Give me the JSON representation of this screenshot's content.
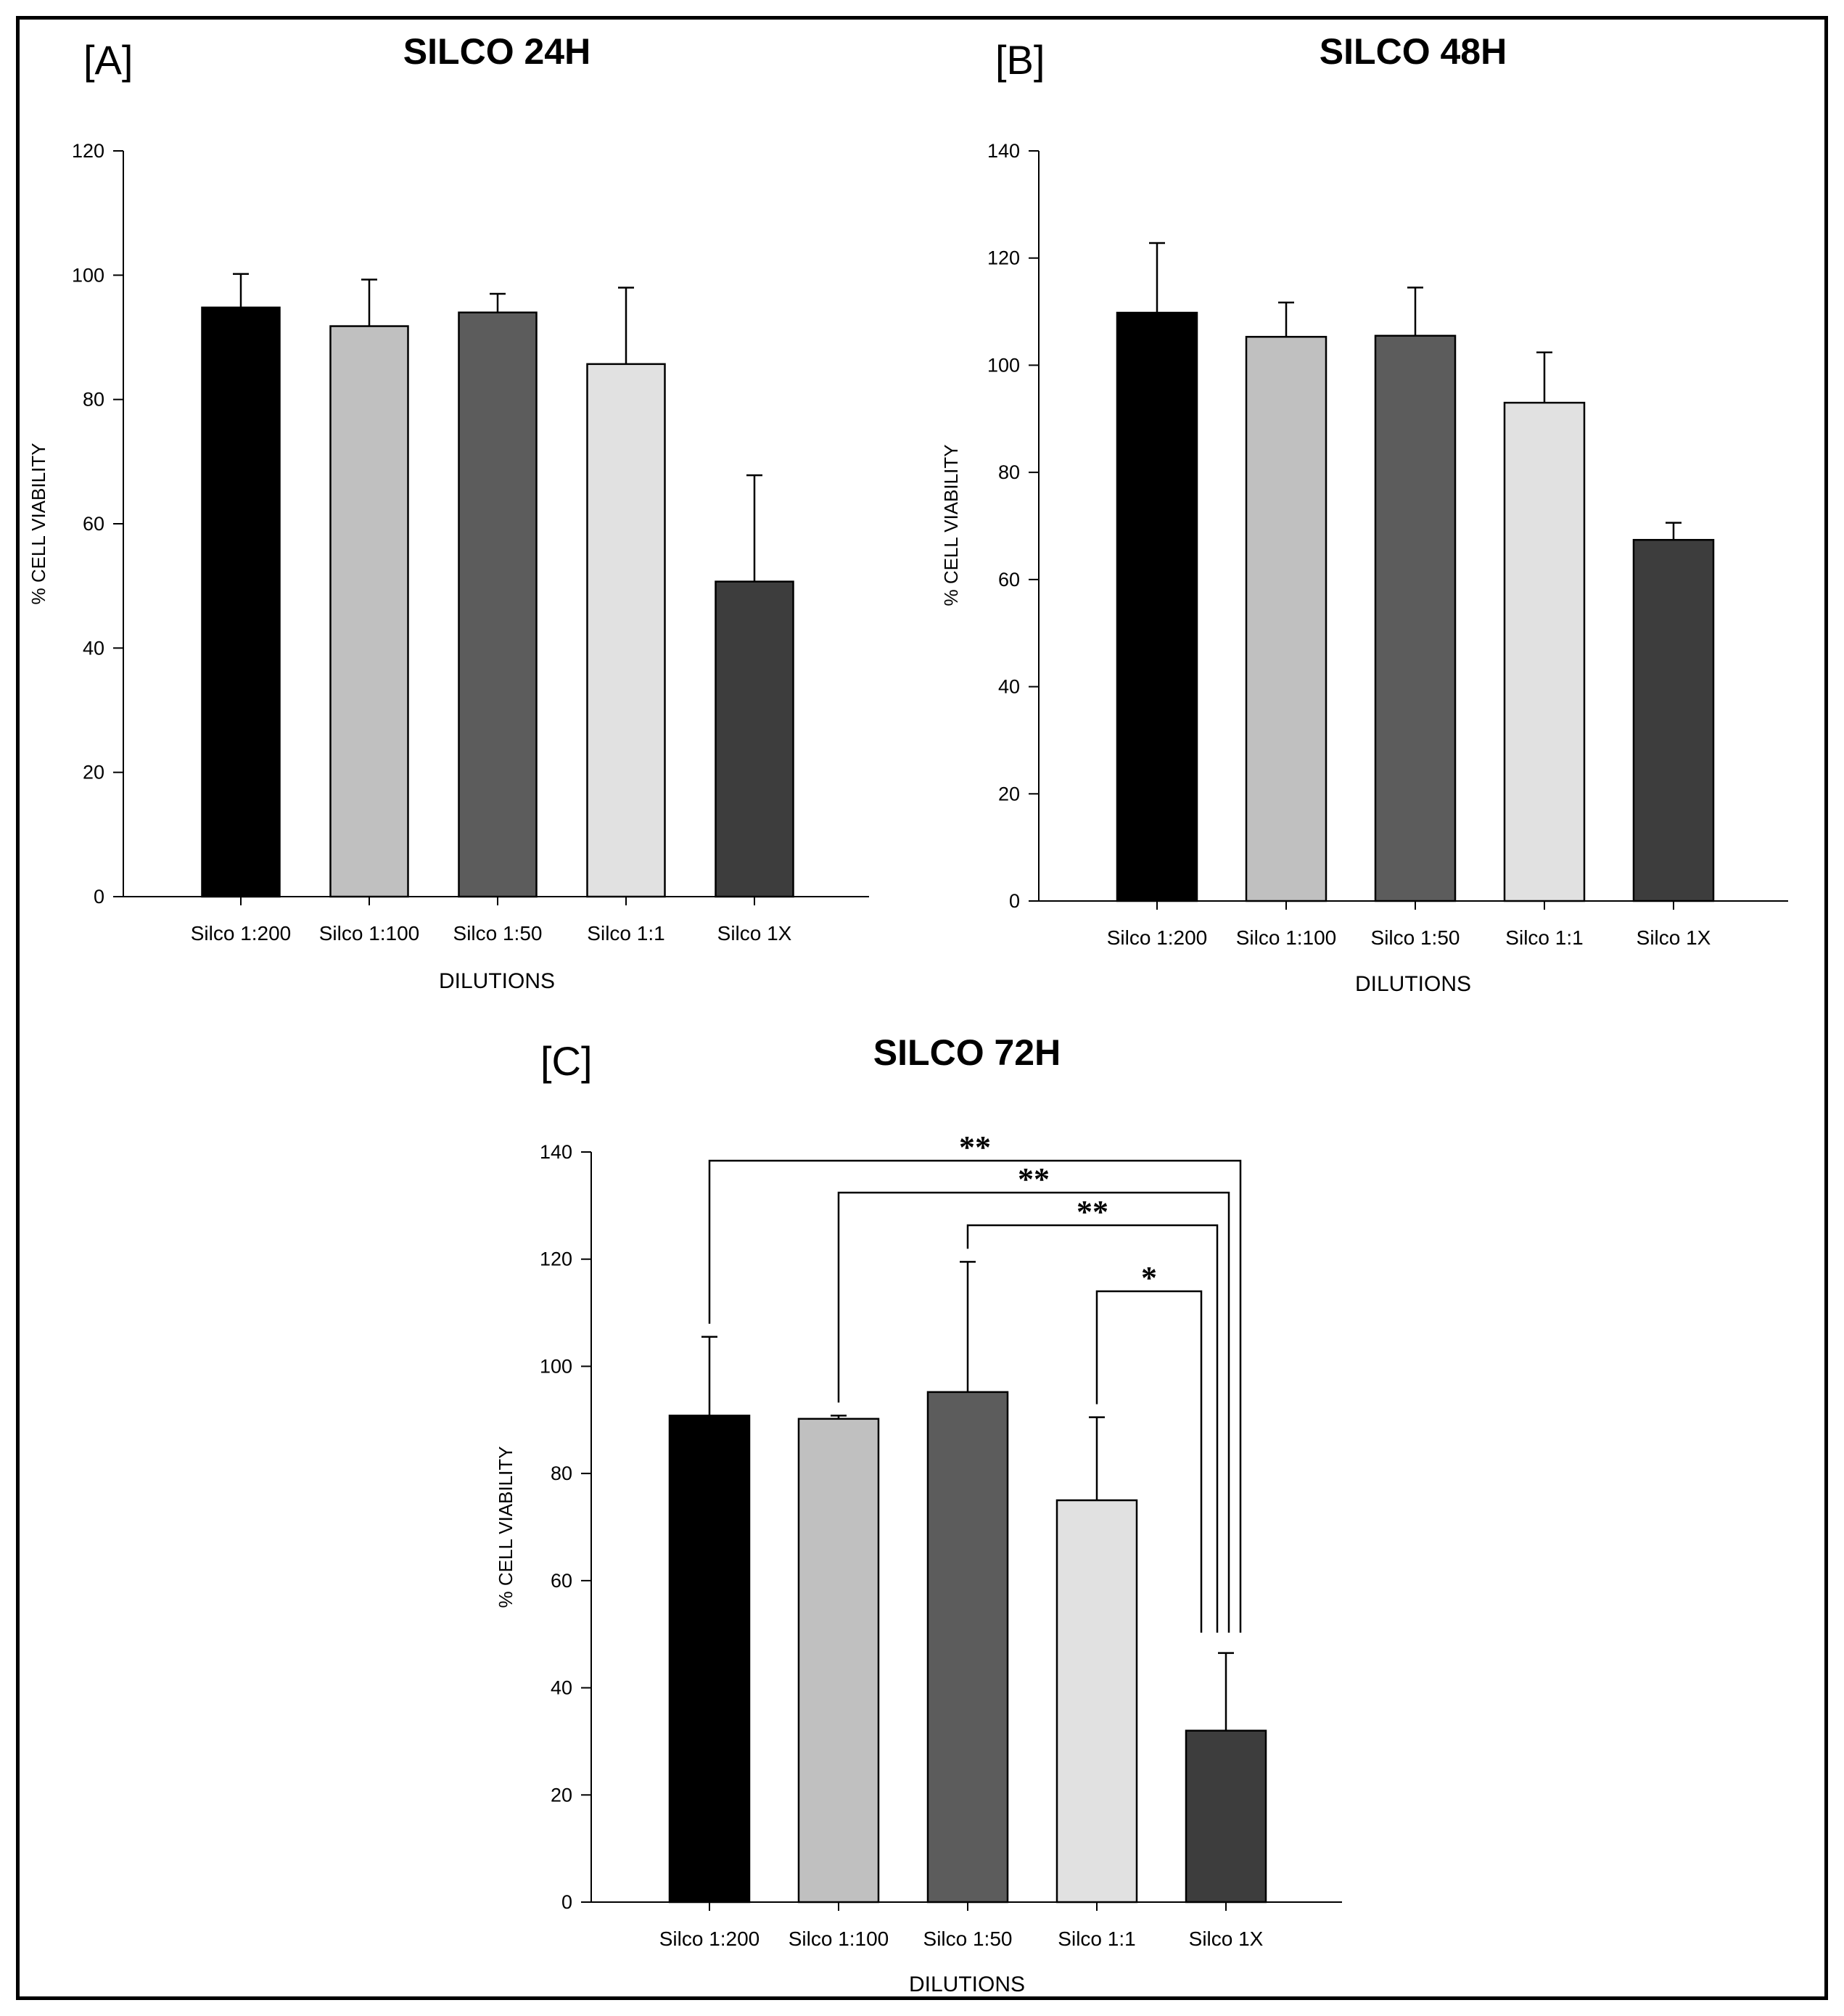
{
  "chart_data": [
    {
      "type": "bar",
      "panel": "[A]",
      "title": "SILCO 24H",
      "xlabel": "DILUTIONS",
      "ylabel": "% CELL VIABILITY",
      "ylim": [
        0,
        120
      ],
      "yticks": [
        0,
        20,
        40,
        60,
        80,
        100,
        120
      ],
      "categories": [
        "Silco 1:200",
        "Silco 1:100",
        "Silco 1:50",
        "Silco 1:1",
        "Silco 1X"
      ],
      "values": [
        94.8,
        91.8,
        94.0,
        85.7,
        50.7
      ],
      "error_upper": [
        100.2,
        99.3,
        97.0,
        98.0,
        67.8
      ],
      "colors": [
        "#000000",
        "#c0c0c0",
        "#5c5c5c",
        "#e1e1e1",
        "#3d3d3d"
      ],
      "significance": []
    },
    {
      "type": "bar",
      "panel": "[B]",
      "title": "SILCO 48H",
      "xlabel": "DILUTIONS",
      "ylabel": "% CELL VIABILITY",
      "ylim": [
        0,
        140
      ],
      "yticks": [
        0,
        20,
        40,
        60,
        80,
        100,
        120,
        140
      ],
      "categories": [
        "Silco 1:200",
        "Silco 1:100",
        "Silco 1:50",
        "Silco 1:1",
        "Silco 1X"
      ],
      "values": [
        109.8,
        105.3,
        105.5,
        93.0,
        67.4
      ],
      "error_upper": [
        122.8,
        111.7,
        114.5,
        102.4,
        70.6
      ],
      "colors": [
        "#000000",
        "#c0c0c0",
        "#5c5c5c",
        "#e1e1e1",
        "#3d3d3d"
      ],
      "significance": []
    },
    {
      "type": "bar",
      "panel": "[C]",
      "title": "SILCO 72H",
      "xlabel": "DILUTIONS",
      "ylabel": "% CELL VIABILITY",
      "ylim": [
        0,
        140
      ],
      "yticks": [
        0,
        20,
        40,
        60,
        80,
        100,
        120,
        140
      ],
      "categories": [
        "Silco 1:200",
        "Silco 1:100",
        "Silco 1:50",
        "Silco 1:1",
        "Silco 1X"
      ],
      "values": [
        90.8,
        90.2,
        95.2,
        75.0,
        32.0
      ],
      "error_upper": [
        105.5,
        90.8,
        119.5,
        90.5,
        46.5
      ],
      "colors": [
        "#000000",
        "#c0c0c0",
        "#5c5c5c",
        "#e1e1e1",
        "#3d3d3d"
      ],
      "significance": [
        {
          "from": "Silco 1:200",
          "to": "Silco 1X",
          "label": "**"
        },
        {
          "from": "Silco 1:100",
          "to": "Silco 1X",
          "label": "**"
        },
        {
          "from": "Silco 1:50",
          "to": "Silco 1X",
          "label": "**"
        },
        {
          "from": "Silco 1:1",
          "to": "Silco 1X",
          "label": "*"
        }
      ]
    }
  ]
}
